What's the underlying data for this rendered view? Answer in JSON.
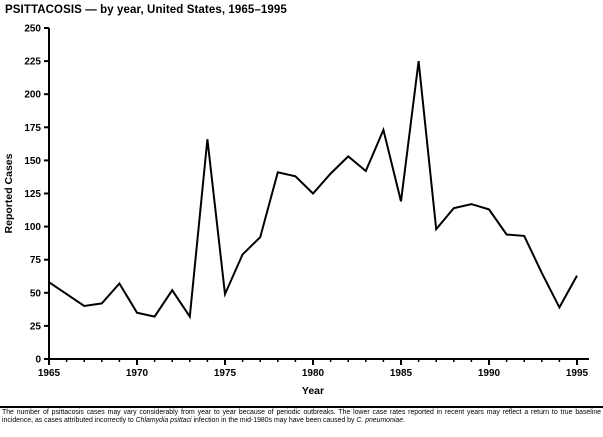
{
  "title": "PSITTACOSIS — by year, United States, 1965–1995",
  "chart_data": {
    "type": "line",
    "title": "PSITTACOSIS — by year, United States, 1965–1995",
    "xlabel": "Year",
    "ylabel": "Reported Cases",
    "ylim": [
      0,
      250
    ],
    "ytick_step": 25,
    "xticks_major": [
      1965,
      1970,
      1975,
      1980,
      1985,
      1990,
      1995
    ],
    "line_color": "#000000",
    "grid": false,
    "legend": "none",
    "x": [
      1965,
      1966,
      1967,
      1968,
      1969,
      1970,
      1971,
      1972,
      1973,
      1974,
      1975,
      1976,
      1977,
      1978,
      1979,
      1980,
      1981,
      1982,
      1983,
      1984,
      1985,
      1986,
      1987,
      1988,
      1989,
      1990,
      1991,
      1992,
      1993,
      1994,
      1995
    ],
    "values": [
      58,
      49,
      40,
      42,
      57,
      35,
      32,
      52,
      32,
      166,
      49,
      79,
      92,
      141,
      138,
      125,
      140,
      153,
      142,
      173,
      119,
      225,
      98,
      114,
      117,
      113,
      94,
      93,
      65,
      39,
      63
    ]
  },
  "footnote": {
    "text_before": "The number of psittacosis cases may vary considerably from year to year because of periodic outbreaks. The lower case rates reported in recent years may reflect a return to true baseline incidence, as cases attributed incorrectly to ",
    "species_1": "Chlamydia psittaci",
    "text_mid": " infection in the mid-1980s may have been caused by ",
    "species_2": "C. pneumoniae",
    "text_after": "."
  }
}
